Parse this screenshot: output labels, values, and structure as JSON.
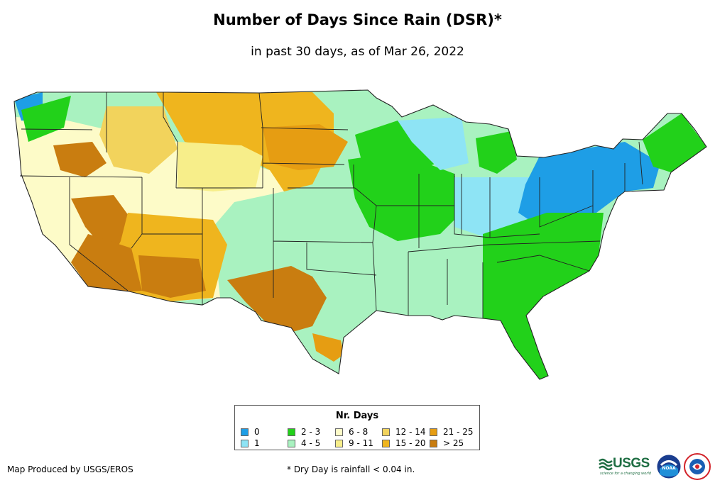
{
  "title": "Number of Days Since Rain (DSR)*",
  "subtitle": "in past 30 days, as of Mar 26, 2022",
  "legend": {
    "title": "Nr. Days",
    "items": [
      {
        "label": "0",
        "color": "#1e9ee6"
      },
      {
        "label": "1",
        "color": "#8ee4f5"
      },
      {
        "label": "2 - 3",
        "color": "#22d11a"
      },
      {
        "label": "4 - 5",
        "color": "#a9f2c0"
      },
      {
        "label": "6 - 8",
        "color": "#fdfbc8"
      },
      {
        "label": "9 - 11",
        "color": "#f7ee8a"
      },
      {
        "label": "12 - 14",
        "color": "#f2d35c"
      },
      {
        "label": "15 - 20",
        "color": "#efb51e"
      },
      {
        "label": "21 - 25",
        "color": "#e69d12"
      },
      {
        "label": "> 25",
        "color": "#c97d10"
      }
    ]
  },
  "footer": {
    "credit": "Map Produced by USGS/EROS",
    "footnote": "* Dry Day is rainfall < 0.04 in."
  },
  "logos": {
    "usgs": "USGS",
    "usgs_tagline": "science for a changing world",
    "noaa": "NOAA",
    "nws": "NWS"
  }
}
